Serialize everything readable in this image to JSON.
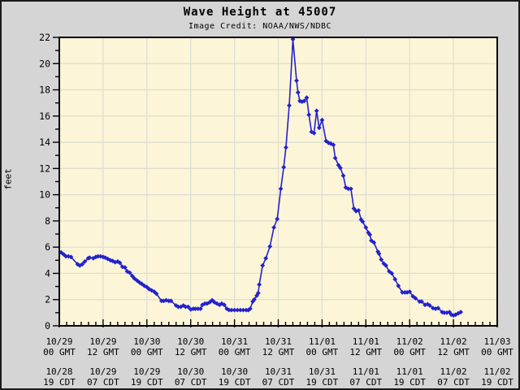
{
  "header": {
    "title": "Wave Height at 45007",
    "subtitle": "Image Credit: NOAA/NWS/NDBC"
  },
  "chart_data": {
    "type": "line",
    "title": "Wave Height at 45007",
    "subtitle": "Image Credit: NOAA/NWS/NDBC",
    "xlabel": "",
    "ylabel": "feet",
    "x_unit": "hours since 10/29 00:00 GMT",
    "xlim": [
      0,
      120
    ],
    "ylim": [
      0,
      22
    ],
    "y_major_step": 2,
    "y_minor_step": 1,
    "x_major_step_hours": 12,
    "x_minor_step_hours": 2,
    "grid": true,
    "legend": "none",
    "marker": "diamond",
    "x_tick_labels_gmt": [
      [
        "10/29",
        "00 GMT"
      ],
      [
        "10/29",
        "12 GMT"
      ],
      [
        "10/30",
        "00 GMT"
      ],
      [
        "10/30",
        "12 GMT"
      ],
      [
        "10/31",
        "00 GMT"
      ],
      [
        "10/31",
        "12 GMT"
      ],
      [
        "11/01",
        "00 GMT"
      ],
      [
        "11/01",
        "12 GMT"
      ],
      [
        "11/02",
        "00 GMT"
      ],
      [
        "11/02",
        "12 GMT"
      ],
      [
        "11/03",
        "00 GMT"
      ]
    ],
    "x_tick_labels_cdt": [
      [
        "10/28",
        "19 CDT"
      ],
      [
        "10/29",
        "07 CDT"
      ],
      [
        "10/29",
        "19 CDT"
      ],
      [
        "10/30",
        "07 CDT"
      ],
      [
        "10/30",
        "19 CDT"
      ],
      [
        "10/31",
        "07 CDT"
      ],
      [
        "10/31",
        "19 CDT"
      ],
      [
        "11/01",
        "07 CDT"
      ],
      [
        "11/01",
        "19 CDT"
      ],
      [
        "11/02",
        "07 CDT"
      ],
      [
        "11/02",
        "19 CDT"
      ]
    ],
    "y_tick_labels": [
      "0",
      "2",
      "4",
      "6",
      "8",
      "10",
      "12",
      "14",
      "16",
      "18",
      "20",
      "22"
    ],
    "series": [
      {
        "name": "wave-height-feet",
        "x": [
          0.5,
          1.2,
          1.8,
          2.5,
          3.2,
          5.0,
          5.6,
          6.3,
          7.0,
          7.9,
          8.3,
          9.3,
          10.0,
          10.6,
          11.3,
          12.0,
          12.6,
          13.3,
          14.0,
          14.6,
          15.3,
          16.0,
          16.6,
          17.3,
          18.0,
          18.6,
          19.3,
          20.0,
          20.6,
          21.3,
          22.0,
          22.6,
          23.3,
          24.0,
          24.6,
          25.3,
          26.0,
          26.6,
          28.0,
          28.6,
          29.3,
          30.0,
          30.6,
          32.0,
          32.6,
          33.3,
          34.0,
          34.6,
          35.3,
          36.0,
          36.7,
          37.3,
          38.0,
          38.7,
          39.2,
          39.9,
          40.5,
          41.2,
          41.9,
          42.5,
          43.2,
          43.9,
          44.5,
          45.2,
          45.9,
          46.5,
          47.2,
          48.0,
          48.8,
          49.6,
          50.4,
          51.2,
          51.8,
          52.3,
          53.0,
          53.4,
          54.1,
          54.5,
          54.8,
          55.7,
          56.6,
          57.7,
          58.8,
          59.7,
          60.7,
          61.5,
          62.1,
          63.0,
          64.0,
          65.0,
          65.4,
          65.9,
          66.5,
          67.1,
          67.8,
          68.4,
          69.1,
          69.8,
          70.5,
          71.2,
          72.0,
          73.1,
          73.8,
          74.4,
          75.1,
          75.6,
          76.5,
          77.0,
          77.8,
          78.5,
          79.2,
          79.9,
          80.7,
          81.3,
          82.0,
          82.7,
          83.1,
          84.0,
          84.7,
          85.1,
          85.5,
          86.2,
          87.3,
          87.6,
          88.2,
          88.9,
          89.5,
          90.4,
          91.1,
          92.0,
          92.9,
          94.0,
          94.7,
          95.3,
          96.0,
          96.9,
          97.6,
          98.7,
          99.3,
          100.2,
          100.9,
          101.5,
          102.4,
          103.1,
          103.8,
          104.9,
          105.5,
          106.2,
          106.9,
          107.4,
          108.0,
          108.6,
          109.3,
          110.0
        ],
        "y": [
          5.6,
          5.45,
          5.3,
          5.3,
          5.25,
          4.7,
          4.6,
          4.7,
          4.9,
          5.15,
          5.2,
          5.15,
          5.25,
          5.3,
          5.3,
          5.25,
          5.2,
          5.1,
          5.0,
          4.95,
          4.85,
          4.9,
          4.8,
          4.5,
          4.45,
          4.15,
          4.05,
          3.8,
          3.6,
          3.45,
          3.3,
          3.2,
          3.05,
          2.95,
          2.8,
          2.7,
          2.6,
          2.45,
          1.9,
          1.9,
          1.95,
          1.9,
          1.9,
          1.55,
          1.45,
          1.45,
          1.55,
          1.45,
          1.45,
          1.25,
          1.3,
          1.3,
          1.3,
          1.3,
          1.6,
          1.7,
          1.7,
          1.8,
          1.95,
          1.8,
          1.7,
          1.6,
          1.7,
          1.6,
          1.3,
          1.2,
          1.2,
          1.2,
          1.2,
          1.2,
          1.2,
          1.2,
          1.2,
          1.3,
          1.85,
          2.0,
          2.3,
          2.5,
          3.15,
          4.6,
          5.15,
          6.05,
          7.5,
          8.15,
          10.45,
          12.1,
          13.6,
          16.8,
          21.85,
          18.7,
          17.8,
          17.15,
          17.1,
          17.15,
          17.4,
          16.1,
          14.8,
          14.7,
          16.4,
          15.1,
          15.7,
          14.1,
          13.95,
          13.9,
          13.8,
          12.8,
          12.25,
          12.05,
          11.45,
          10.55,
          10.45,
          10.45,
          8.95,
          8.75,
          8.8,
          8.1,
          7.95,
          7.5,
          7.1,
          6.95,
          6.5,
          6.35,
          5.65,
          5.5,
          5.05,
          4.75,
          4.6,
          4.15,
          4.0,
          3.55,
          3.05,
          2.55,
          2.55,
          2.55,
          2.6,
          2.25,
          2.1,
          1.85,
          1.85,
          1.6,
          1.65,
          1.55,
          1.35,
          1.3,
          1.35,
          1.05,
          1.0,
          1.0,
          1.05,
          0.85,
          0.8,
          0.85,
          0.95,
          1.05
        ]
      }
    ],
    "colors": {
      "line": "#2222cc",
      "plot_bg": "#fdf5d7",
      "page_bg": "#d5d5d5",
      "grid": "#dcdcd4",
      "axis": "#000000"
    }
  }
}
